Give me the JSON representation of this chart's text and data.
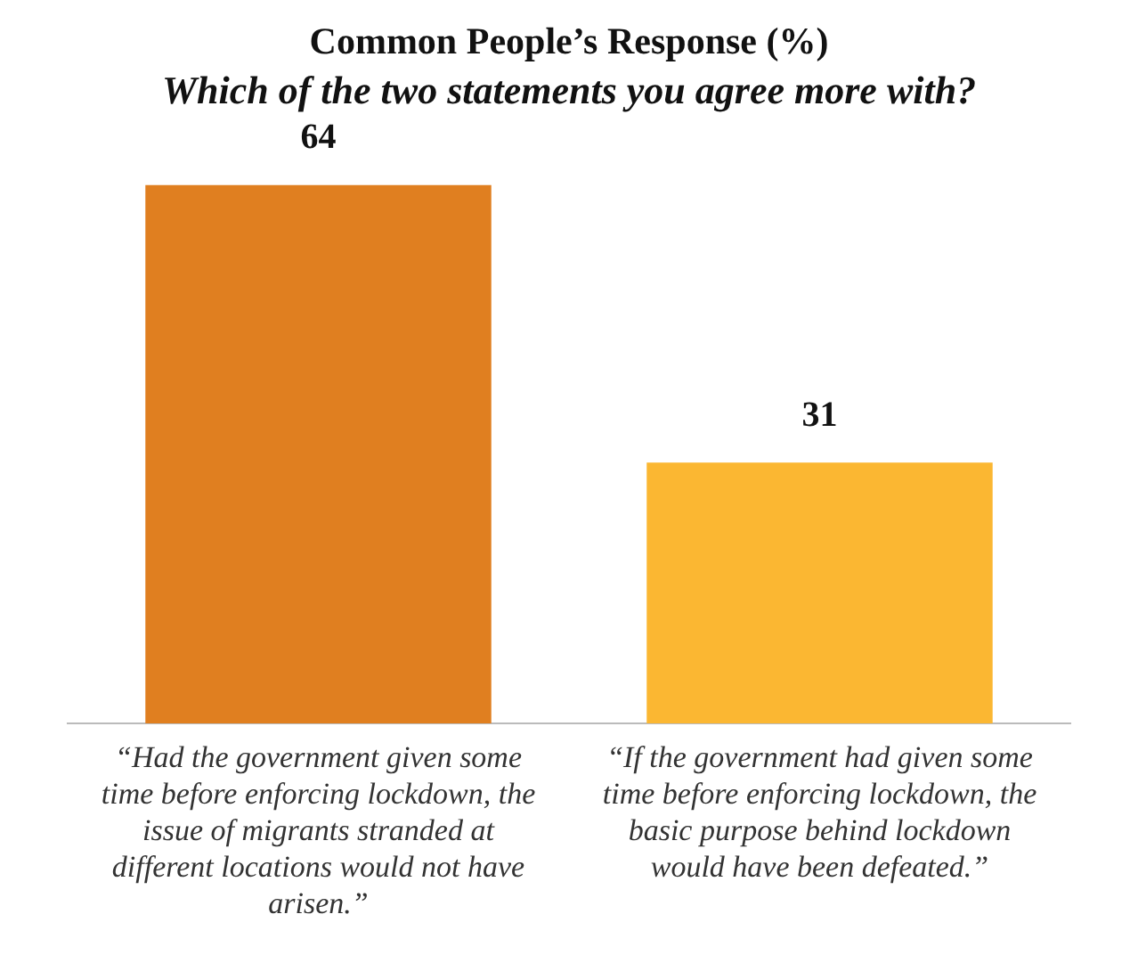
{
  "chart_data": {
    "type": "bar",
    "title": "Common People’s Response (%)",
    "subtitle": "Which of the two statements you agree more with?",
    "categories": [
      "“Had the government given some time before enforcing lockdown, the issue of migrants stranded at different locations would not have arisen.”",
      "“If the government had given some time before enforcing lockdown, the basic purpose behind lockdown would have been defeated.”"
    ],
    "values": [
      64,
      31
    ],
    "colors": [
      "#e07f20",
      "#fbb732"
    ],
    "data_labels": true,
    "grid": false,
    "legend": false
  }
}
